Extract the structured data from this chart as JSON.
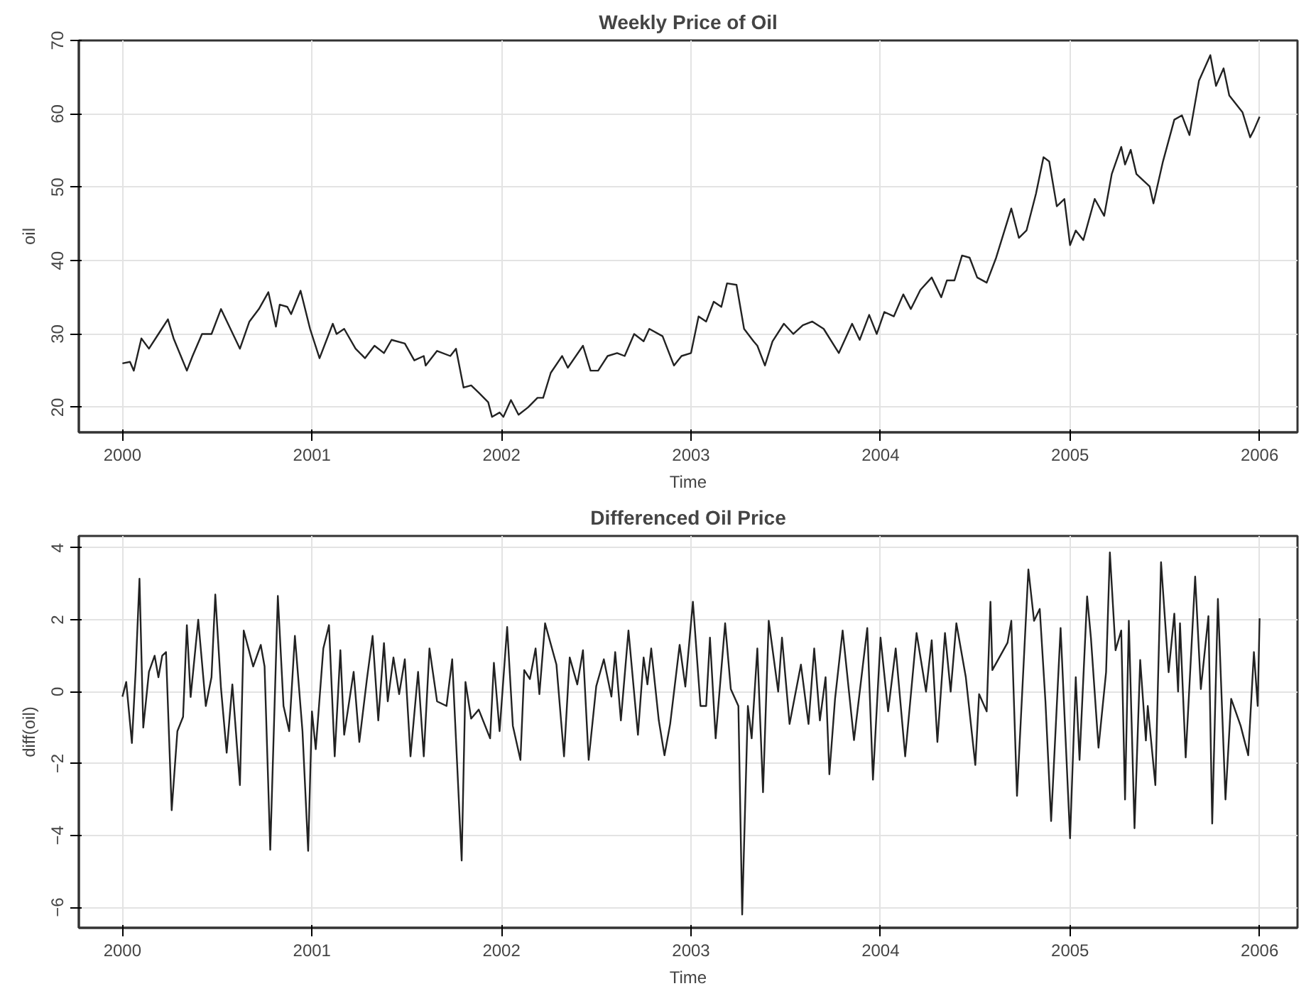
{
  "chart_data": [
    {
      "type": "line",
      "title": "Weekly Price of Oil",
      "xlabel": "Time",
      "ylabel": "oil",
      "xlim": [
        1999.77,
        2006.2
      ],
      "ylim": [
        16.6,
        70
      ],
      "xticks": [
        2000,
        2001,
        2002,
        2003,
        2004,
        2005,
        2006
      ],
      "yticks": [
        20,
        30,
        40,
        50,
        60,
        70
      ],
      "grid": true,
      "line_style": "solid",
      "series": [
        {
          "color": "#222222",
          "x": [
            2000.0,
            2000.04,
            2000.06,
            2000.1,
            2000.14,
            2000.19,
            2000.24,
            2000.27,
            2000.34,
            2000.37,
            2000.42,
            2000.47,
            2000.52,
            2000.57,
            2000.62,
            2000.67,
            2000.72,
            2000.77,
            2000.81,
            2000.83,
            2000.87,
            2000.89,
            2000.94,
            2000.99,
            2001.04,
            2001.11,
            2001.13,
            2001.17,
            2001.23,
            2001.28,
            2001.33,
            2001.38,
            2001.42,
            2001.49,
            2001.54,
            2001.59,
            2001.6,
            2001.66,
            2001.73,
            2001.76,
            2001.8,
            2001.84,
            2001.88,
            2001.93,
            2001.95,
            2001.99,
            2002.01,
            2002.05,
            2002.09,
            2002.14,
            2002.19,
            2002.22,
            2002.26,
            2002.32,
            2002.35,
            2002.43,
            2002.47,
            2002.51,
            2002.56,
            2002.61,
            2002.65,
            2002.7,
            2002.75,
            2002.78,
            2002.85,
            2002.91,
            2002.95,
            2003.0,
            2003.04,
            2003.08,
            2003.12,
            2003.16,
            2003.19,
            2003.24,
            2003.28,
            2003.33,
            2003.35,
            2003.39,
            2003.43,
            2003.49,
            2003.54,
            2003.59,
            2003.64,
            2003.7,
            2003.78,
            2003.85,
            2003.89,
            2003.94,
            2003.98,
            2004.02,
            2004.07,
            2004.12,
            2004.16,
            2004.21,
            2004.27,
            2004.32,
            2004.35,
            2004.39,
            2004.43,
            2004.47,
            2004.51,
            2004.56,
            2004.61,
            2004.69,
            2004.73,
            2004.77,
            2004.82,
            2004.86,
            2004.89,
            2004.93,
            2004.97,
            2005.0,
            2005.03,
            2005.07,
            2005.13,
            2005.18,
            2005.22,
            2005.27,
            2005.29,
            2005.32,
            2005.35,
            2005.42,
            2005.44,
            2005.49,
            2005.55,
            2005.59,
            2005.63,
            2005.68,
            2005.74,
            2005.77,
            2005.81,
            2005.84,
            2005.91,
            2005.95,
            2005.97,
            2006.0
          ],
          "values": [
            26.0,
            26.2,
            25.0,
            29.4,
            28.0,
            30.0,
            32.0,
            29.4,
            25.0,
            27.0,
            30.0,
            30.0,
            33.4,
            30.7,
            28.0,
            31.7,
            33.4,
            35.7,
            31.0,
            34.0,
            33.7,
            32.7,
            35.9,
            30.7,
            26.7,
            31.4,
            30.0,
            30.7,
            28.0,
            26.7,
            28.4,
            27.4,
            29.2,
            28.7,
            26.4,
            27.0,
            25.7,
            27.7,
            27.0,
            28.0,
            22.7,
            23.0,
            22.0,
            20.7,
            18.7,
            19.3,
            18.7,
            21.0,
            19.0,
            20.0,
            21.3,
            21.3,
            24.7,
            27.0,
            25.4,
            28.4,
            25.0,
            25.0,
            27.0,
            27.4,
            27.0,
            30.0,
            29.0,
            30.7,
            29.7,
            25.7,
            27.0,
            27.4,
            32.4,
            31.7,
            34.4,
            33.7,
            36.9,
            36.7,
            30.7,
            29.0,
            28.4,
            25.7,
            29.0,
            31.4,
            30.0,
            31.2,
            31.7,
            30.7,
            27.4,
            31.4,
            29.2,
            32.6,
            30.0,
            33.0,
            32.4,
            35.4,
            33.4,
            36.0,
            37.7,
            35.0,
            37.3,
            37.3,
            40.7,
            40.4,
            37.7,
            37.0,
            40.4,
            47.1,
            43.1,
            44.1,
            49.1,
            54.1,
            53.5,
            47.4,
            48.4,
            42.1,
            44.1,
            42.8,
            48.4,
            46.1,
            51.8,
            55.5,
            53.1,
            55.1,
            51.8,
            50.1,
            47.8,
            53.5,
            59.2,
            59.8,
            57.1,
            64.5,
            68.0,
            63.8,
            66.2,
            62.5,
            60.2,
            56.8,
            57.8,
            59.6
          ]
        }
      ]
    },
    {
      "type": "line",
      "title": "Differenced Oil Price",
      "xlabel": "Time",
      "ylabel": "diff(oil)",
      "xlim": [
        1999.77,
        2006.2
      ],
      "ylim": [
        -6.57,
        4.33
      ],
      "xticks": [
        2000,
        2001,
        2002,
        2003,
        2004,
        2005,
        2006
      ],
      "yticks": [
        -6,
        -4,
        -2,
        0,
        2,
        4
      ],
      "grid": true,
      "line_style": "solid",
      "series": [
        {
          "color": "#222222",
          "x": [
            2000.0,
            2000.02,
            2000.05,
            2000.07,
            2000.09,
            2000.11,
            2000.14,
            2000.17,
            2000.19,
            2000.21,
            2000.23,
            2000.26,
            2000.29,
            2000.32,
            2000.34,
            2000.36,
            2000.4,
            2000.44,
            2000.47,
            2000.49,
            2000.52,
            2000.55,
            2000.58,
            2000.62,
            2000.64,
            2000.69,
            2000.73,
            2000.75,
            2000.78,
            2000.82,
            2000.85,
            2000.88,
            2000.91,
            2000.95,
            2000.98,
            2001.0,
            2001.02,
            2001.06,
            2001.09,
            2001.12,
            2001.15,
            2001.17,
            2001.22,
            2001.25,
            2001.29,
            2001.32,
            2001.35,
            2001.38,
            2001.4,
            2001.43,
            2001.46,
            2001.49,
            2001.52,
            2001.56,
            2001.59,
            2001.62,
            2001.66,
            2001.71,
            2001.74,
            2001.79,
            2001.81,
            2001.84,
            2001.88,
            2001.94,
            2001.96,
            2001.99,
            2002.03,
            2002.06,
            2002.1,
            2002.12,
            2002.15,
            2002.18,
            2002.2,
            2002.23,
            2002.29,
            2002.33,
            2002.36,
            2002.4,
            2002.43,
            2002.46,
            2002.5,
            2002.54,
            2002.58,
            2002.6,
            2002.63,
            2002.67,
            2002.72,
            2002.75,
            2002.77,
            2002.79,
            2002.83,
            2002.86,
            2002.89,
            2002.94,
            2002.97,
            2003.01,
            2003.05,
            2003.08,
            2003.1,
            2003.13,
            2003.18,
            2003.21,
            2003.25,
            2003.27,
            2003.3,
            2003.32,
            2003.35,
            2003.38,
            2003.41,
            2003.46,
            2003.48,
            2003.52,
            2003.58,
            2003.62,
            2003.65,
            2003.68,
            2003.71,
            2003.73,
            2003.76,
            2003.8,
            2003.86,
            2003.93,
            2003.96,
            2004.0,
            2004.04,
            2004.08,
            2004.13,
            2004.19,
            2004.24,
            2004.27,
            2004.3,
            2004.34,
            2004.37,
            2004.4,
            2004.45,
            2004.5,
            2004.52,
            2004.56,
            2004.58,
            2004.59,
            2004.67,
            2004.69,
            2004.72,
            2004.78,
            2004.81,
            2004.84,
            2004.87,
            2004.9,
            2004.95,
            2005.0,
            2005.03,
            2005.05,
            2005.09,
            2005.11,
            2005.15,
            2005.19,
            2005.21,
            2005.24,
            2005.27,
            2005.29,
            2005.31,
            2005.34,
            2005.37,
            2005.4,
            2005.41,
            2005.45,
            2005.48,
            2005.52,
            2005.55,
            2005.57,
            2005.58,
            2005.61,
            2005.66,
            2005.69,
            2005.73,
            2005.75,
            2005.78,
            2005.82,
            2005.85,
            2005.9,
            2005.94,
            2005.97,
            2005.99,
            2006.0
          ],
          "values": [
            -0.14,
            0.27,
            -1.43,
            0.6,
            3.14,
            -1.0,
            0.55,
            1.0,
            0.4,
            1.0,
            1.1,
            -3.3,
            -1.1,
            -0.7,
            1.85,
            -0.15,
            2.0,
            -0.4,
            0.4,
            2.7,
            0.1,
            -1.7,
            0.2,
            -2.6,
            1.7,
            0.7,
            1.3,
            0.7,
            -4.4,
            2.66,
            -0.4,
            -1.1,
            1.55,
            -1.1,
            -4.43,
            -0.55,
            -1.6,
            1.2,
            1.85,
            -1.8,
            1.15,
            -1.2,
            0.55,
            -1.4,
            0.35,
            1.55,
            -0.8,
            1.35,
            -0.27,
            0.95,
            -0.07,
            0.9,
            -1.8,
            0.55,
            -1.8,
            1.2,
            -0.27,
            -0.4,
            0.9,
            -4.7,
            0.27,
            -0.75,
            -0.5,
            -1.3,
            0.8,
            -1.1,
            1.8,
            -0.95,
            -1.9,
            0.6,
            0.35,
            1.2,
            -0.07,
            1.9,
            0.75,
            -1.8,
            0.95,
            0.2,
            1.15,
            -1.9,
            0.15,
            0.9,
            -0.14,
            1.1,
            -0.8,
            1.7,
            -1.2,
            0.95,
            0.2,
            1.2,
            -0.8,
            -1.77,
            -0.9,
            1.3,
            0.14,
            2.5,
            -0.4,
            -0.4,
            1.5,
            -1.3,
            1.9,
            0.07,
            -0.4,
            -6.2,
            -0.4,
            -1.3,
            1.2,
            -2.8,
            1.97,
            0.0,
            1.5,
            -0.9,
            0.75,
            -0.9,
            1.2,
            -0.8,
            0.4,
            -2.3,
            -0.2,
            1.7,
            -1.35,
            1.77,
            -2.45,
            1.5,
            -0.55,
            1.2,
            -1.8,
            1.63,
            0.0,
            1.43,
            -1.4,
            1.63,
            0.0,
            1.9,
            0.4,
            -2.04,
            -0.07,
            -0.55,
            2.5,
            0.6,
            1.36,
            1.97,
            -2.9,
            3.4,
            1.97,
            2.3,
            -0.27,
            -3.6,
            1.77,
            -4.08,
            0.4,
            -1.9,
            2.65,
            1.5,
            -1.56,
            0.54,
            3.87,
            1.15,
            1.7,
            -3.0,
            1.97,
            -3.8,
            0.88,
            -1.36,
            -0.4,
            -2.6,
            3.6,
            0.54,
            2.17,
            0.0,
            1.9,
            -1.83,
            3.2,
            0.07,
            2.1,
            -3.67,
            2.58,
            -3.0,
            -0.2,
            -0.95,
            -1.77,
            1.1,
            -0.4,
            2.04
          ]
        }
      ]
    }
  ]
}
